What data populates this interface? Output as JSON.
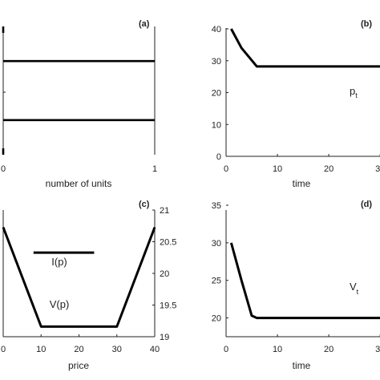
{
  "chart_data": [
    {
      "id": "a",
      "type": "line",
      "panel_label": "(a)",
      "xlabel": "number of units",
      "ylabel": "",
      "xlim": [
        0,
        1
      ],
      "x_ticks": [
        0,
        1
      ],
      "series": [
        {
          "x": [
            0,
            1
          ],
          "y": [
            0.73,
            0.73
          ]
        },
        {
          "x": [
            0,
            1
          ],
          "y": [
            0.27,
            0.27
          ]
        },
        {
          "x": [
            0,
            0
          ],
          "y": [
            0.0,
            0.05
          ]
        },
        {
          "x": [
            0,
            0
          ],
          "y": [
            0.95,
            1.0
          ]
        }
      ],
      "frame": "left-right",
      "grid": false
    },
    {
      "id": "b",
      "type": "line",
      "panel_label": "(b)",
      "xlabel": "time",
      "xlim": [
        0,
        32
      ],
      "ylim": [
        0,
        40
      ],
      "x_ticks": [
        0,
        10,
        20,
        30
      ],
      "y_ticks": [
        0,
        10,
        20,
        30,
        40
      ],
      "curve_label": {
        "main": "p",
        "sub": "t"
      },
      "series": [
        {
          "x": [
            1,
            3,
            6,
            32
          ],
          "y": [
            40,
            34,
            28.2,
            28.2
          ]
        }
      ],
      "grid": false
    },
    {
      "id": "c",
      "type": "line",
      "panel_label": "(c)",
      "xlabel": "price",
      "xlim": [
        0,
        40
      ],
      "x_ticks": [
        0,
        10,
        20,
        30,
        40
      ],
      "ylim": [
        19.25,
        20.5
      ],
      "y_ticks": [
        19.5,
        20,
        20.5
      ],
      "y2lim": [
        19,
        21
      ],
      "y2_ticks": [
        19,
        19.5,
        20,
        20.5,
        21
      ],
      "series": [
        {
          "label": "V(p)",
          "x": [
            0,
            10,
            30,
            40
          ],
          "y": [
            20.33,
            19.35,
            19.35,
            20.33
          ]
        },
        {
          "label": "I(p)",
          "x": [
            8,
            24
          ],
          "y": [
            20.08,
            20.08
          ]
        }
      ],
      "grid": false
    },
    {
      "id": "d",
      "type": "line",
      "panel_label": "(d)",
      "xlabel": "time",
      "xlim": [
        0,
        32
      ],
      "ylim": [
        17.5,
        35
      ],
      "x_ticks": [
        0,
        10,
        20,
        30
      ],
      "y_ticks": [
        20,
        25,
        30,
        35
      ],
      "curve_label": {
        "main": "V",
        "sub": "t"
      },
      "series": [
        {
          "x": [
            1,
            3,
            5,
            6,
            32
          ],
          "y": [
            30,
            25,
            20.3,
            20,
            20
          ]
        }
      ],
      "grid": false
    }
  ]
}
